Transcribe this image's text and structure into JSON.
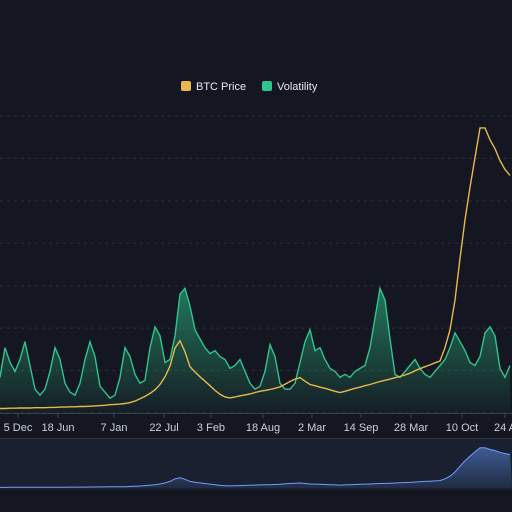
{
  "chart_data": {
    "type": "area",
    "title": "",
    "xlabel": "",
    "ylabel": "",
    "grid": true,
    "legend_position": "top-center",
    "x_tick_labels": [
      "5 Dec",
      "18 Jun",
      "7 Jan",
      "22 Jul",
      "3 Feb",
      "18 Aug",
      "2 Mar",
      "14 Sep",
      "28 Mar",
      "10 Oct",
      "24 A"
    ],
    "y_range": [
      0,
      100
    ],
    "series": [
      {
        "name": "BTC Price",
        "type": "line",
        "color": "#e8b84a",
        "x": [
          0,
          5,
          10,
          15,
          20,
          25,
          30,
          35,
          40,
          45,
          50,
          55,
          60,
          65,
          70,
          75,
          80,
          85,
          90,
          95,
          100,
          105,
          110,
          115,
          120,
          125,
          130,
          135,
          140,
          145,
          150,
          155,
          160,
          165,
          170,
          175,
          180,
          185,
          190,
          195,
          200,
          205,
          210,
          215,
          220,
          225,
          230,
          235,
          240,
          245,
          250,
          255,
          260,
          265,
          270,
          275,
          280,
          285,
          290,
          295,
          300,
          305,
          310,
          315,
          320,
          325,
          330,
          335,
          340,
          345,
          350,
          355,
          360,
          365,
          370,
          375,
          380,
          385,
          390,
          395,
          400,
          405,
          410,
          415,
          420,
          425,
          430,
          435,
          440,
          445,
          450,
          455,
          460,
          465,
          470,
          475,
          480,
          485,
          490,
          495,
          500,
          505,
          510
        ],
        "y": [
          1.5,
          1.5,
          1.6,
          1.6,
          1.7,
          1.7,
          1.7,
          1.8,
          1.8,
          1.8,
          1.9,
          1.9,
          2.0,
          2.0,
          2.1,
          2.1,
          2.2,
          2.2,
          2.3,
          2.4,
          2.5,
          2.6,
          2.8,
          2.9,
          3.0,
          3.2,
          3.5,
          4.0,
          4.8,
          5.6,
          6.6,
          7.8,
          9.6,
          12.2,
          15.8,
          21.9,
          24.3,
          20.6,
          15.6,
          13.8,
          12.2,
          10.7,
          9.2,
          7.6,
          6.3,
          5.4,
          5.1,
          5.4,
          5.8,
          6.1,
          6.4,
          6.9,
          7.3,
          7.6,
          7.9,
          8.3,
          8.8,
          9.7,
          10.6,
          11.4,
          11.9,
          10.7,
          9.6,
          9.2,
          8.7,
          8.3,
          7.8,
          7.3,
          6.9,
          7.3,
          7.8,
          8.3,
          8.7,
          9.2,
          9.6,
          10.1,
          10.6,
          11.0,
          11.4,
          11.9,
          12.3,
          12.8,
          13.4,
          14.2,
          14.9,
          15.6,
          16.2,
          16.9,
          17.5,
          22.0,
          28.0,
          38.0,
          52.0,
          65.0,
          76.0,
          86.0,
          96.0,
          96.0,
          92.0,
          89.0,
          85.0,
          82.0,
          80.0
        ]
      },
      {
        "name": "Volatility",
        "type": "area",
        "color": "#2fc48b",
        "x": [
          0,
          5,
          10,
          15,
          20,
          25,
          30,
          35,
          40,
          45,
          50,
          55,
          60,
          65,
          70,
          75,
          80,
          85,
          90,
          95,
          100,
          105,
          110,
          115,
          120,
          125,
          130,
          135,
          140,
          145,
          150,
          155,
          160,
          165,
          170,
          175,
          180,
          185,
          190,
          195,
          200,
          205,
          210,
          215,
          220,
          225,
          230,
          235,
          240,
          245,
          250,
          255,
          260,
          265,
          270,
          275,
          280,
          285,
          290,
          295,
          300,
          305,
          310,
          315,
          320,
          325,
          330,
          335,
          340,
          345,
          350,
          355,
          360,
          365,
          370,
          375,
          380,
          385,
          390,
          395,
          400,
          405,
          410,
          415,
          420,
          425,
          430,
          435,
          440,
          445,
          450,
          455,
          460,
          465,
          470,
          475,
          480,
          485,
          490,
          495,
          500,
          505,
          510
        ],
        "y": [
          12,
          22,
          17,
          14,
          18,
          24,
          16,
          8,
          6,
          8,
          14,
          22,
          18,
          10,
          7,
          6,
          10,
          18,
          24,
          19,
          9,
          7,
          5,
          6,
          12,
          22,
          19,
          13,
          10,
          11,
          22,
          29,
          26,
          17,
          18,
          26,
          40,
          42,
          36,
          28,
          25,
          22,
          20,
          21,
          19,
          18,
          15,
          16,
          18,
          14,
          10,
          8,
          9,
          14,
          23,
          19,
          10,
          8,
          8,
          10,
          17,
          24,
          28,
          21,
          22,
          18,
          15,
          14,
          12,
          13,
          12,
          14,
          15,
          16,
          22,
          32,
          42,
          38,
          25,
          13,
          12,
          14,
          16,
          18,
          15,
          13,
          12,
          14,
          16,
          18,
          22,
          27,
          24,
          21,
          17,
          16,
          19,
          27,
          29,
          26,
          15,
          12,
          16
        ]
      }
    ]
  },
  "navigator": {
    "color": "#6ba0ff"
  }
}
